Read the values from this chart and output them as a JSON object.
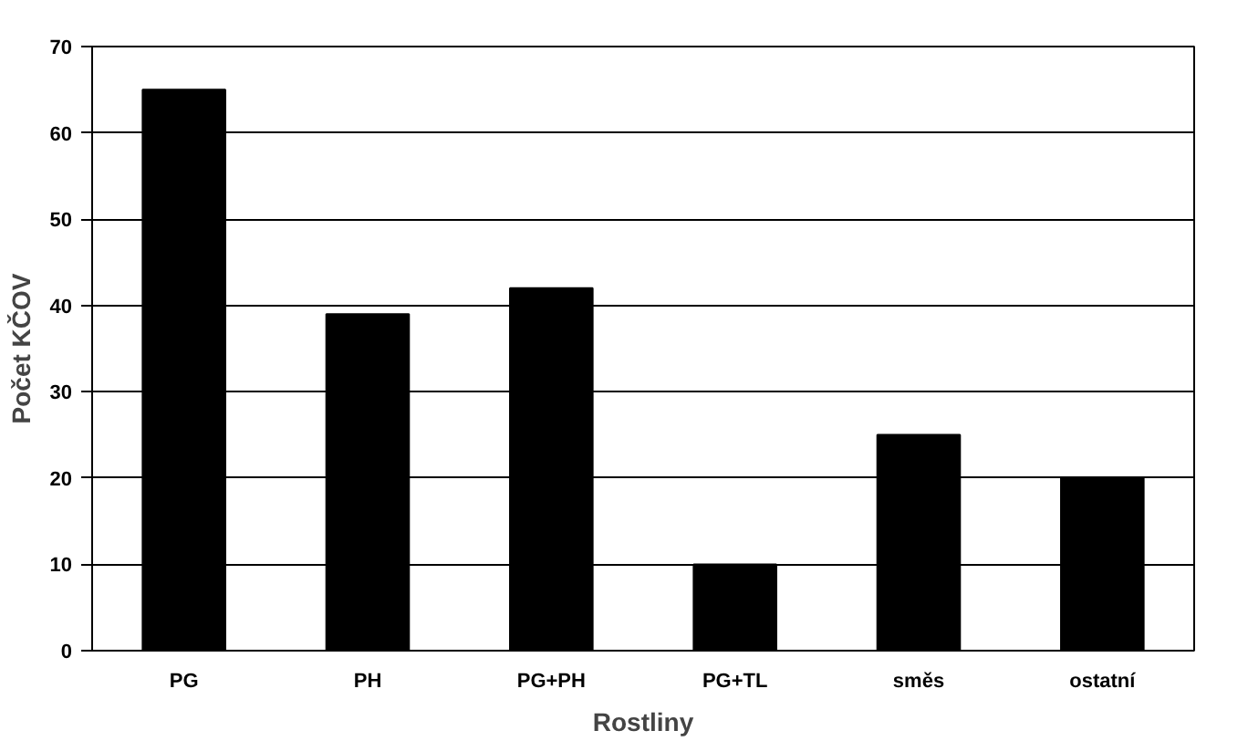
{
  "chart_data": {
    "type": "bar",
    "xlabel": "Rostliny",
    "ylabel": "Počet KČOV",
    "categories": [
      "PG",
      "PH",
      "PG+PH",
      "PG+TL",
      "směs",
      "ostatní"
    ],
    "values": [
      65,
      39,
      42,
      10,
      25,
      20
    ],
    "color": "#000000",
    "ylim": [
      0,
      70
    ],
    "yticks": [
      0,
      10,
      20,
      30,
      40,
      50,
      60,
      70
    ],
    "grid": "y"
  }
}
